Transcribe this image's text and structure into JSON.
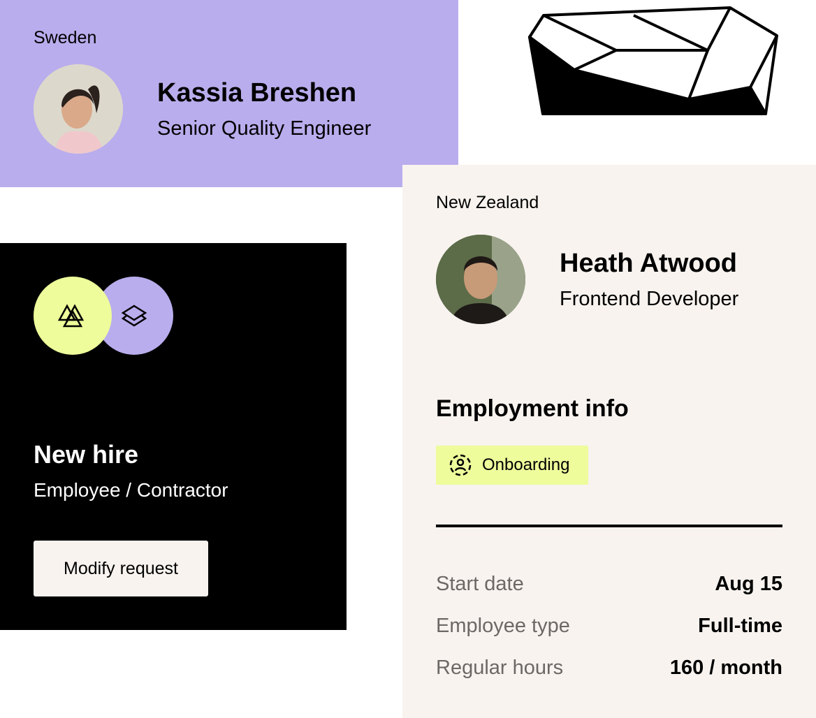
{
  "profile_card_1": {
    "country": "Sweden",
    "name": "Kassia Breshen",
    "role": "Senior Quality Engineer",
    "bg_color": "#b9aded"
  },
  "new_hire_card": {
    "icons": [
      "triangles-icon",
      "layers-icon"
    ],
    "title": "New hire",
    "subtitle": "Employee / Contractor",
    "button_label": "Modify request"
  },
  "profile_card_2": {
    "country": "New Zealand",
    "name": "Heath Atwood",
    "role": "Frontend Developer",
    "section_title": "Employment info",
    "status_badge": {
      "icon": "user-dashed-circle-icon",
      "label": "Onboarding",
      "color": "#eefc9b"
    },
    "details": [
      {
        "label": "Start date",
        "value": "Aug 15"
      },
      {
        "label": "Employee type",
        "value": "Full-time"
      },
      {
        "label": "Regular hours",
        "value": "160 / month"
      }
    ]
  }
}
